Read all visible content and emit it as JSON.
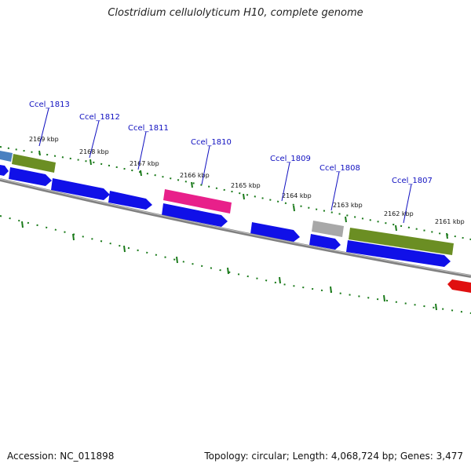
{
  "title": "Clostridium cellulolyticum H10, complete genome",
  "footer": {
    "accession": "Accession: NC_011898",
    "summary": "Topology: circular; Length: 4,068,724 bp; Genes: 3,477"
  },
  "colors": {
    "blue_gene": "#1010e8",
    "olive_gene": "#6b8e23",
    "pink_gene": "#e8208a",
    "gray_gene": "#a8a8a8",
    "red_gene": "#e01010",
    "steel_gene": "#4a80c0",
    "backbone": "#808080",
    "tick": "#1a7a1a",
    "label": "#1010c0"
  },
  "ticks": {
    "labels": [
      "2169 kbp",
      "2168 kbp",
      "2167 kbp",
      "2166 kbp",
      "2165 kbp",
      "2164 kbp",
      "2163 kbp",
      "2162 kbp",
      "2161 kbp"
    ]
  },
  "genes": {
    "labels": [
      "Ccel_1813",
      "Ccel_1812",
      "Ccel_1811",
      "Ccel_1810",
      "Ccel_1809",
      "Ccel_1808",
      "Ccel_1807"
    ]
  }
}
